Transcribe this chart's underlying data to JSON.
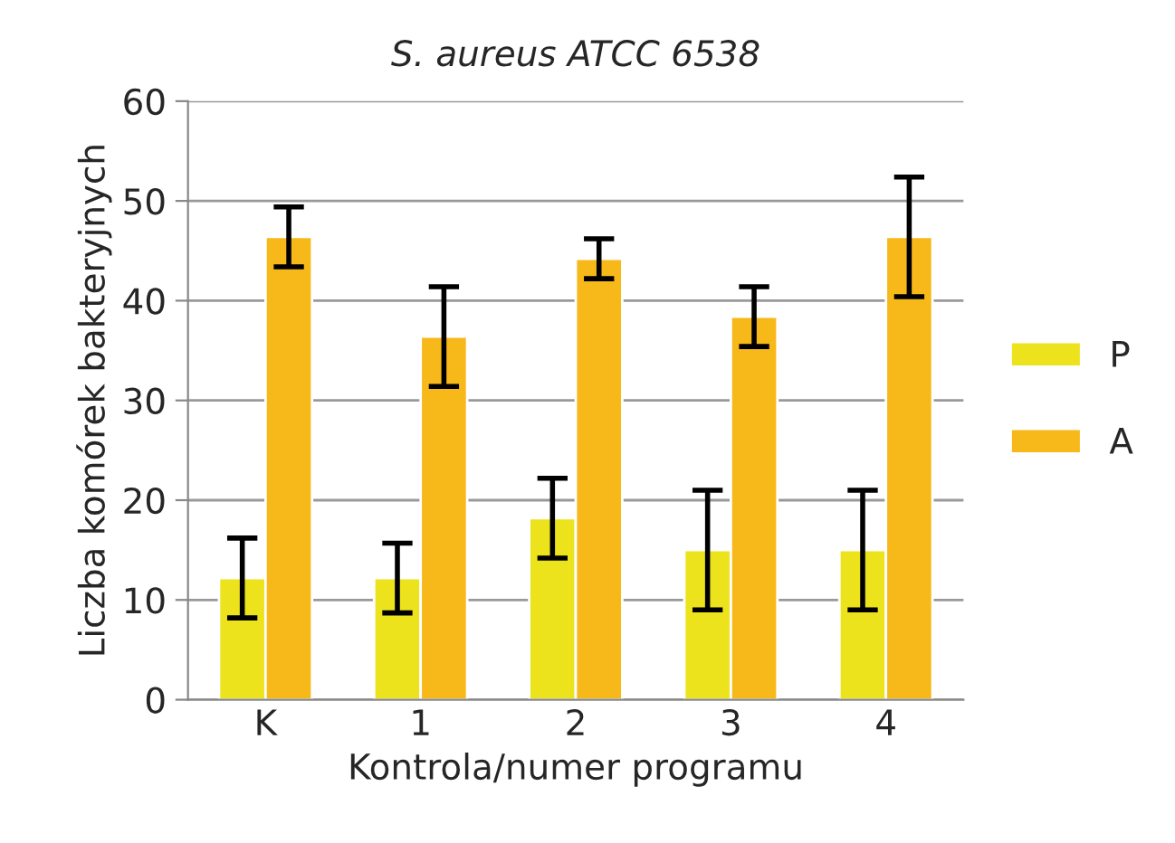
{
  "chart_data": {
    "type": "bar",
    "title": "S. aureus ATCC 6538",
    "xlabel": "Kontrola/numer programu",
    "ylabel": "Liczba komórek bakteryjnych",
    "categories": [
      "K",
      "1",
      "2",
      "3",
      "4"
    ],
    "series": [
      {
        "name": "P",
        "color": "#ede31c",
        "values": [
          12.2,
          12.2,
          18.2,
          15,
          15
        ],
        "errors": [
          4,
          3.5,
          4,
          6,
          6
        ]
      },
      {
        "name": "A",
        "color": "#f7b81a",
        "values": [
          46.4,
          36.4,
          44.2,
          38.4,
          46.4
        ],
        "errors": [
          3,
          5,
          2,
          3,
          6
        ]
      }
    ],
    "ylim": [
      0,
      60
    ],
    "yticks": [
      0,
      10,
      20,
      30,
      40,
      50,
      60
    ],
    "grid": "y",
    "legend": "right"
  }
}
